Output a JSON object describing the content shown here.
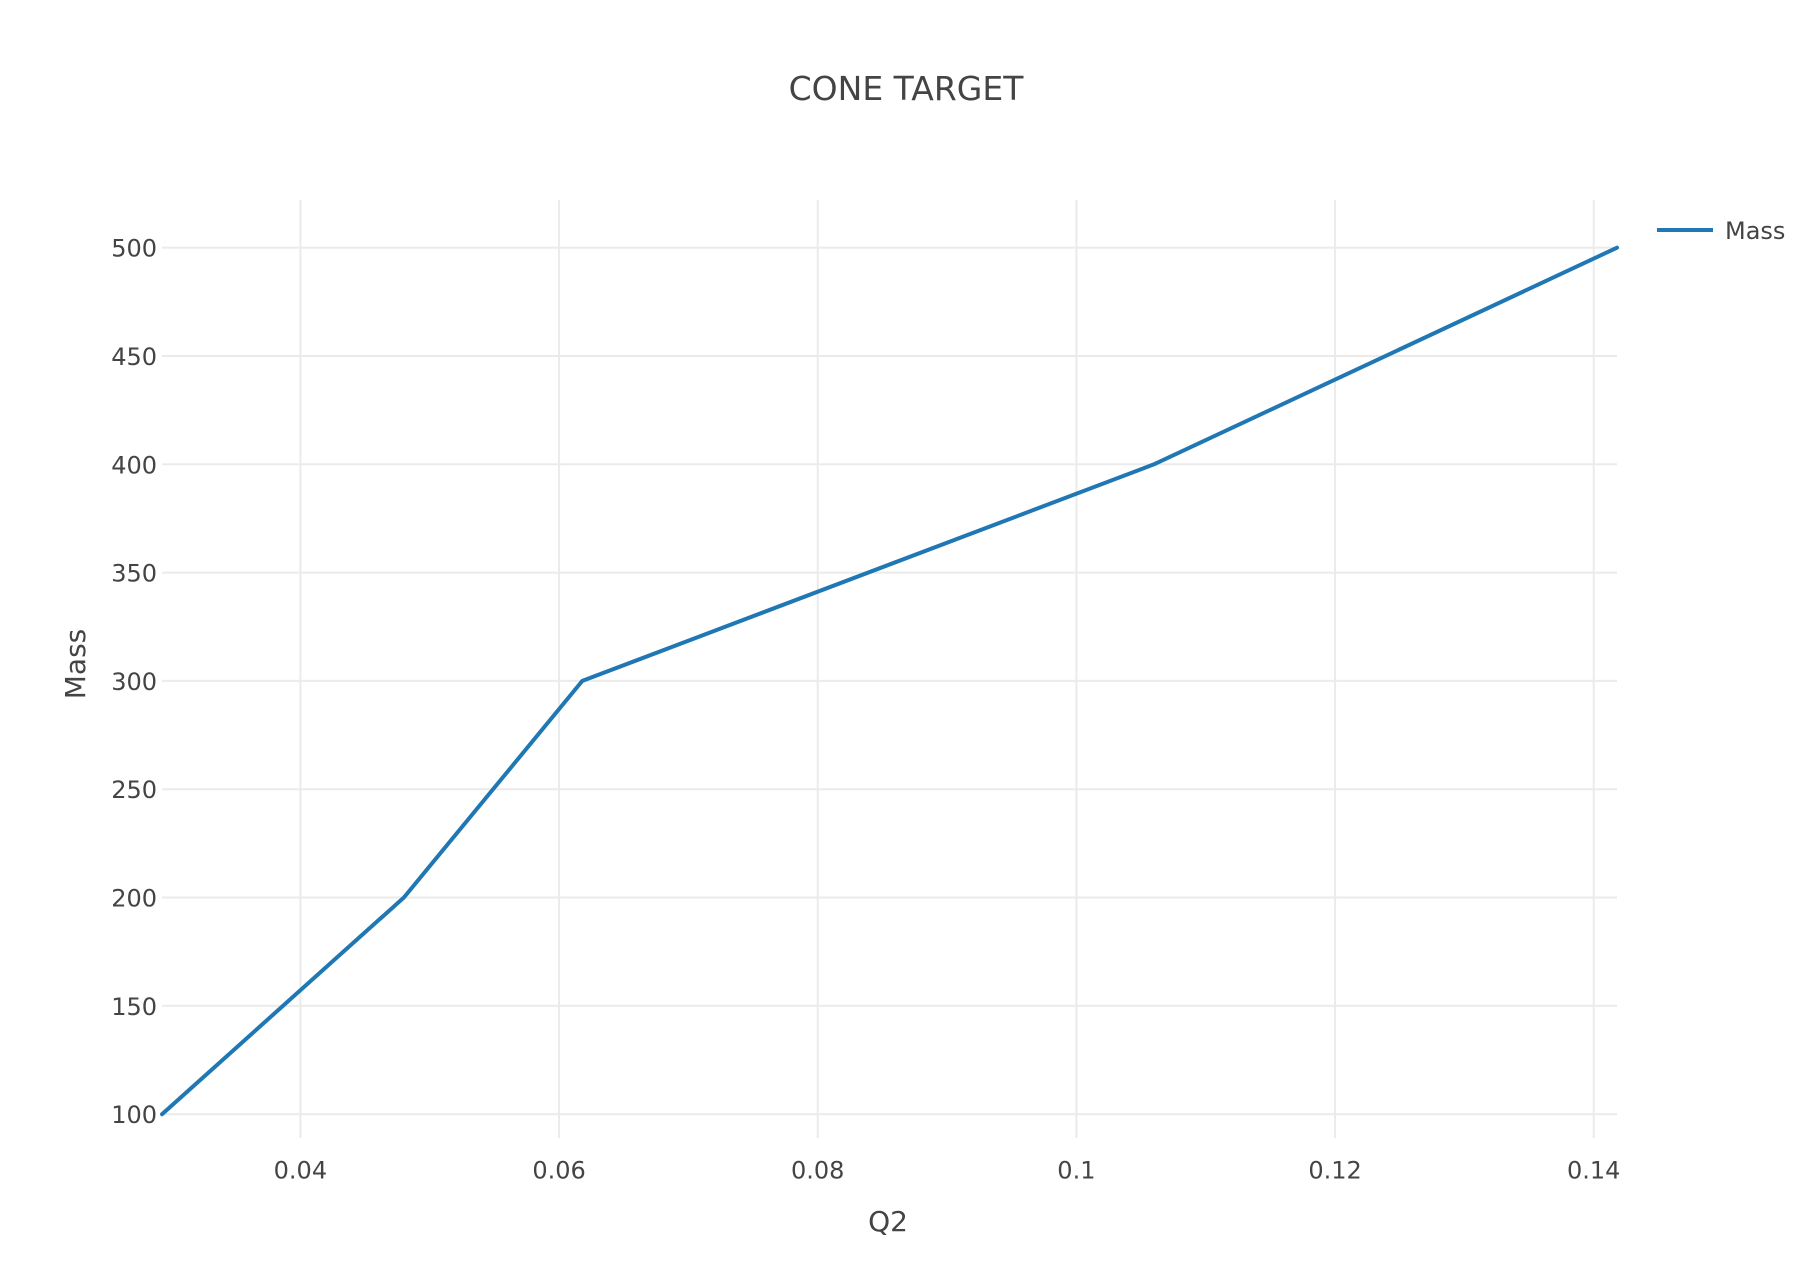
{
  "chart_data": {
    "type": "line",
    "title": "CONE TARGET",
    "xlabel": "Q2",
    "ylabel": "Mass",
    "xlim": [
      0.0293,
      0.1418
    ],
    "ylim": [
      89,
      522
    ],
    "x_ticks": [
      0.04,
      0.06,
      0.08,
      0.1,
      0.12,
      0.14
    ],
    "x_tick_labels": [
      "0.04",
      "0.06",
      "0.08",
      "0.1",
      "0.12",
      "0.14"
    ],
    "y_ticks": [
      100,
      150,
      200,
      250,
      300,
      350,
      400,
      450,
      500
    ],
    "y_tick_labels": [
      "100",
      "150",
      "200",
      "250",
      "300",
      "350",
      "400",
      "450",
      "500"
    ],
    "grid": true,
    "legend_position": "top-right",
    "series": [
      {
        "name": "Mass",
        "color": "#1f77b4",
        "x": [
          0.0293,
          0.048,
          0.0618,
          0.106,
          0.1418
        ],
        "y": [
          100,
          200,
          300,
          400,
          500
        ]
      }
    ]
  }
}
